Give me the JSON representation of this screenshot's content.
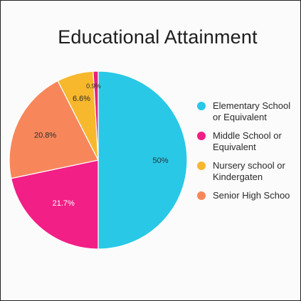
{
  "chart_data": {
    "type": "pie",
    "title": "Educational Attainment",
    "slices": [
      {
        "label": "Elementary School\nor Equivalent",
        "value": 50,
        "value_label": "50%",
        "color": "#29c8e6",
        "label_color": "#24313a"
      },
      {
        "label": "Middle School or\nEquivalent",
        "value": 21.7,
        "value_label": "21.7%",
        "color": "#f21f86",
        "label_color": "#ffffff"
      },
      {
        "label": "Senior High Schoo",
        "value": 20.8,
        "value_label": "20.8%",
        "color": "#f7875a",
        "label_color": "#2a2a2a"
      },
      {
        "label": "Nursery school or\nKindergaten",
        "value": 6.6,
        "value_label": "6.6%",
        "color": "#f7b82e",
        "label_color": "#2a2a2a"
      },
      {
        "label": "",
        "value": 0.9,
        "value_label": "0.9%",
        "color": "#e5217a",
        "label_color": "#2a2a2a"
      }
    ],
    "legend": [
      {
        "label": "Elementary School\nor Equivalent",
        "color": "#29c8e6"
      },
      {
        "label": "Middle School or\nEquivalent",
        "color": "#f21f86"
      },
      {
        "label": "Nursery school or\nKindergaten",
        "color": "#f7b82e"
      },
      {
        "label": "Senior High Schoo",
        "color": "#f7875a"
      }
    ],
    "legend_position": "right"
  }
}
